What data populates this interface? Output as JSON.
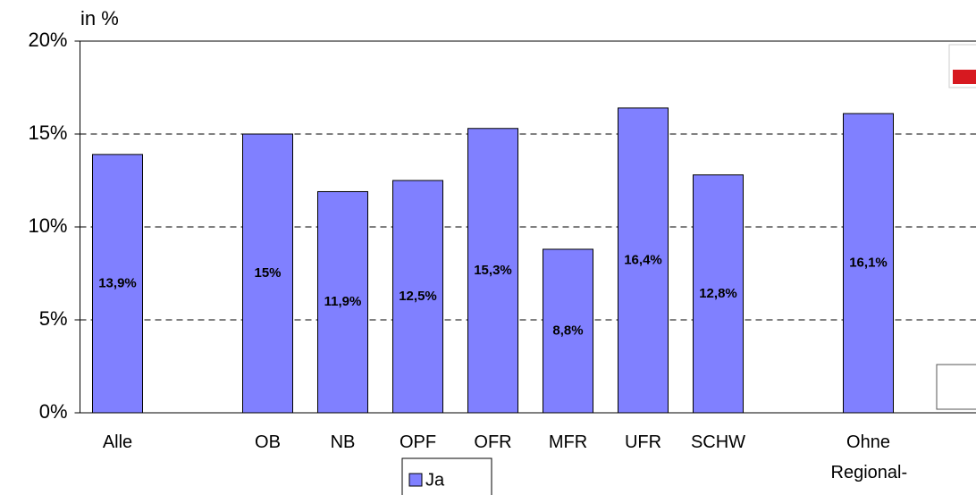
{
  "chart_data": {
    "type": "bar",
    "y_label": "in %",
    "categories": [
      "Alle",
      null,
      "OB",
      "NB",
      "OPF",
      "OFR",
      "MFR",
      "UFR",
      "SCHW",
      null,
      "Ohne Regional-"
    ],
    "series": [
      {
        "name": "Ja",
        "color": "#8080ff",
        "values": [
          13.9,
          null,
          15,
          11.9,
          12.5,
          15.3,
          8.8,
          16.4,
          12.8,
          null,
          16.1
        ],
        "value_labels": [
          "13,9%",
          null,
          "15%",
          "11,9%",
          "12,5%",
          "15,3%",
          "8,8%",
          "16,4%",
          "12,8%",
          null,
          "16,1%"
        ]
      }
    ],
    "ylim": [
      0,
      20
    ],
    "yticks": [
      {
        "value": 0,
        "label": "0%"
      },
      {
        "value": 5,
        "label": "5%"
      },
      {
        "value": 10,
        "label": "10%"
      },
      {
        "value": 15,
        "label": "15%"
      },
      {
        "value": 20,
        "label": "20%"
      }
    ],
    "grid": true
  }
}
